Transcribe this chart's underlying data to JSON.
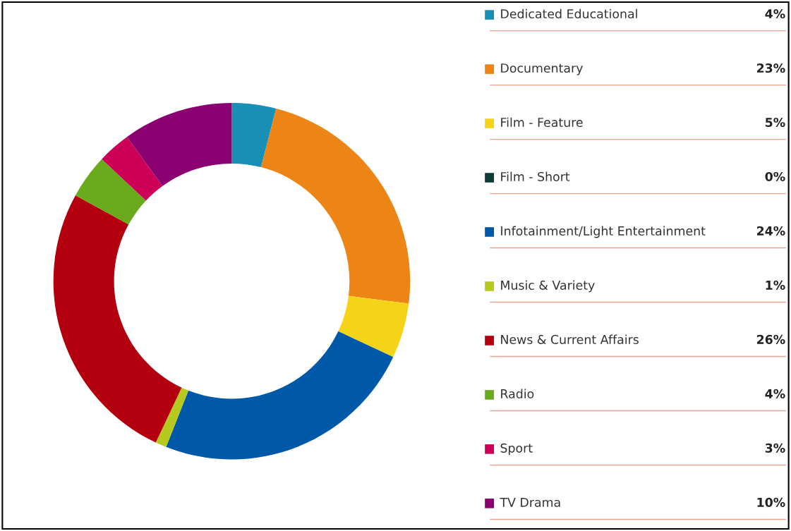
{
  "chart_data": {
    "type": "donut",
    "categories": [
      "Dedicated Educational",
      "Documentary",
      "Film - Feature",
      "Film - Short",
      "Infotainment/Light Entertainment",
      "Music & Variety",
      "News & Current Affairs",
      "Radio",
      "Sport",
      "TV Drama"
    ],
    "values": [
      4,
      23,
      5,
      0,
      24,
      1,
      26,
      4,
      3,
      10
    ],
    "colors": [
      "#1a8fb5",
      "#ec8416",
      "#f5d319",
      "#0e3b33",
      "#0058a8",
      "#b5c91e",
      "#b4000e",
      "#6aab1e",
      "#cc0057",
      "#8b0071"
    ],
    "value_labels": [
      "4%",
      "23%",
      "5%",
      "0%",
      "24%",
      "1%",
      "26%",
      "4%",
      "3%",
      "10%"
    ],
    "legend": "right"
  }
}
